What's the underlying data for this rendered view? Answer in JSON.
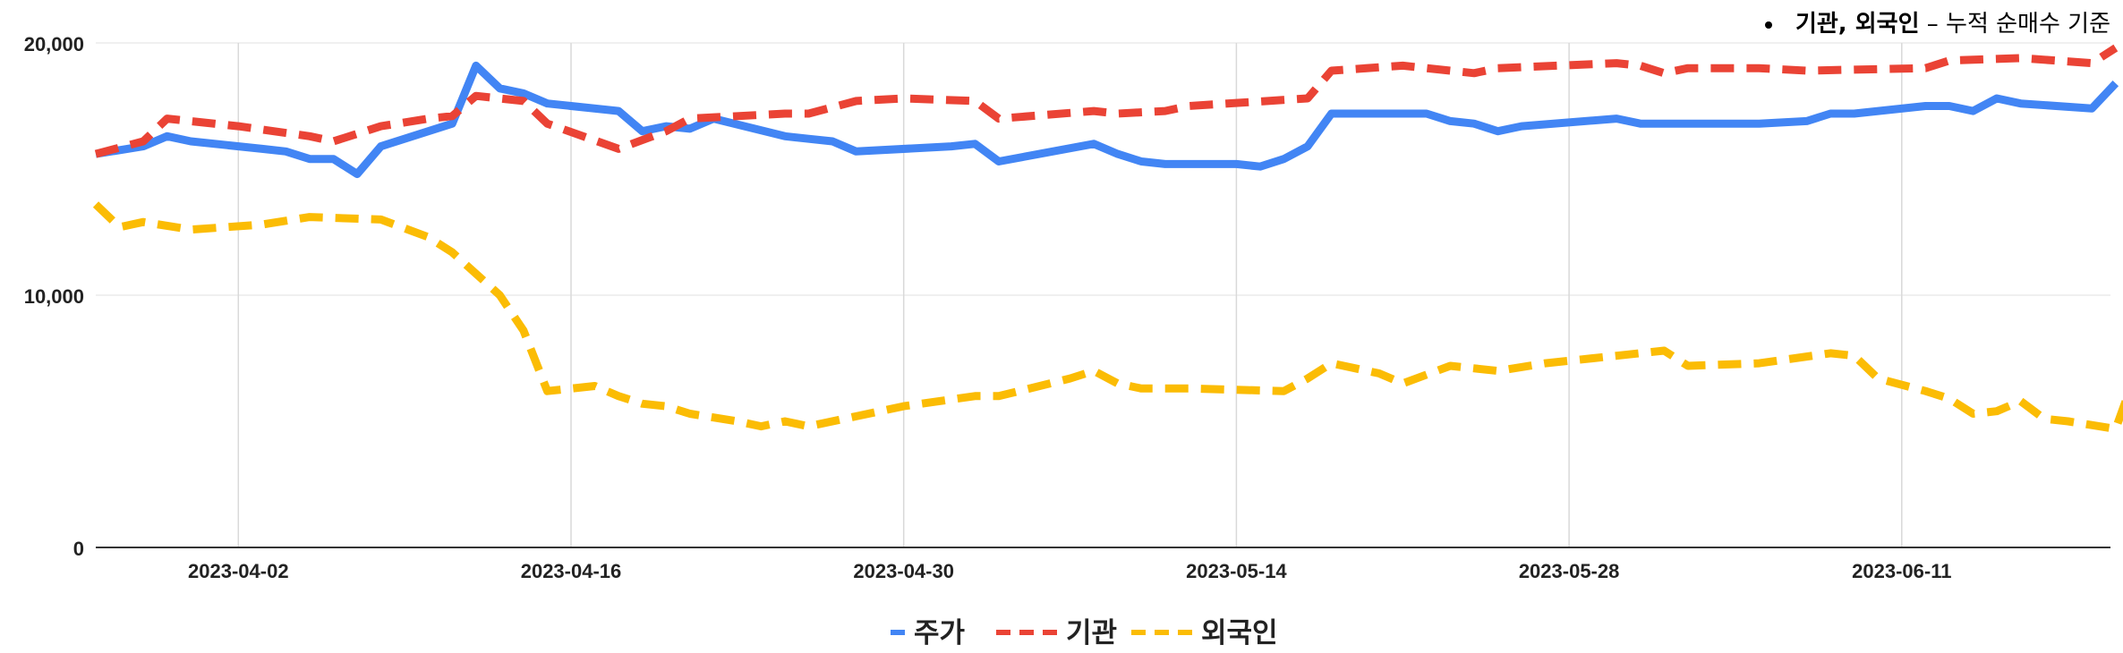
{
  "note": {
    "bold": "기관, 외국인",
    "rest": " – 누적 순매수 기준"
  },
  "colors": {
    "price": "#4285f4",
    "inst": "#ea4335",
    "foreign": "#fbbc04",
    "grid": "#d9d9d9",
    "axis": "#333333"
  },
  "chart_data": {
    "type": "line",
    "ylim": [
      0,
      20000
    ],
    "yticks": [
      "0",
      "10,000",
      "20,000"
    ],
    "x_tick_labels": [
      "2023-04-02",
      "2023-04-16",
      "2023-04-30",
      "2023-05-14",
      "2023-05-28",
      "2023-06-11"
    ],
    "legend_position": "bottom",
    "grid": true,
    "series": [
      {
        "name": "주가",
        "style": "solid",
        "color_key": "price",
        "points": [
          [
            "2023-03-27",
            15600
          ],
          [
            "2023-03-29",
            15900
          ],
          [
            "2023-03-30",
            16300
          ],
          [
            "2023-03-31",
            16100
          ],
          [
            "2023-04-03",
            15800
          ],
          [
            "2023-04-04",
            15700
          ],
          [
            "2023-04-05",
            15400
          ],
          [
            "2023-04-06",
            15400
          ],
          [
            "2023-04-07",
            14800
          ],
          [
            "2023-04-08",
            15900
          ],
          [
            "2023-04-11",
            16800
          ],
          [
            "2023-04-12",
            19100
          ],
          [
            "2023-04-13",
            18200
          ],
          [
            "2023-04-14",
            18000
          ],
          [
            "2023-04-15",
            17600
          ],
          [
            "2023-04-18",
            17300
          ],
          [
            "2023-04-19",
            16500
          ],
          [
            "2023-04-20",
            16700
          ],
          [
            "2023-04-21",
            16600
          ],
          [
            "2023-04-22",
            17000
          ],
          [
            "2023-04-25",
            16300
          ],
          [
            "2023-04-26",
            16200
          ],
          [
            "2023-04-27",
            16100
          ],
          [
            "2023-04-28",
            15700
          ],
          [
            "2023-05-02",
            15900
          ],
          [
            "2023-05-03",
            16000
          ],
          [
            "2023-05-04",
            15300
          ],
          [
            "2023-05-08",
            16000
          ],
          [
            "2023-05-09",
            15600
          ],
          [
            "2023-05-10",
            15300
          ],
          [
            "2023-05-11",
            15200
          ],
          [
            "2023-05-12",
            15200
          ],
          [
            "2023-05-14",
            15200
          ],
          [
            "2023-05-15",
            15100
          ],
          [
            "2023-05-16",
            15400
          ],
          [
            "2023-05-17",
            15900
          ],
          [
            "2023-05-18",
            17200
          ],
          [
            "2023-05-19",
            17200
          ],
          [
            "2023-05-22",
            17200
          ],
          [
            "2023-05-23",
            16900
          ],
          [
            "2023-05-24",
            16800
          ],
          [
            "2023-05-25",
            16500
          ],
          [
            "2023-05-26",
            16700
          ],
          [
            "2023-05-30",
            17000
          ],
          [
            "2023-05-31",
            16800
          ],
          [
            "2023-06-01",
            16800
          ],
          [
            "2023-06-05",
            16800
          ],
          [
            "2023-06-07",
            16900
          ],
          [
            "2023-06-08",
            17200
          ],
          [
            "2023-06-09",
            17200
          ],
          [
            "2023-06-12",
            17500
          ],
          [
            "2023-06-13",
            17500
          ],
          [
            "2023-06-14",
            17300
          ],
          [
            "2023-06-15",
            17800
          ],
          [
            "2023-06-16",
            17600
          ],
          [
            "2023-06-19",
            17400
          ],
          [
            "2023-06-20",
            18400
          ]
        ]
      },
      {
        "name": "기관",
        "style": "dashed",
        "color_key": "inst",
        "points": [
          [
            "2023-03-27",
            15600
          ],
          [
            "2023-03-29",
            16100
          ],
          [
            "2023-03-30",
            17000
          ],
          [
            "2023-04-02",
            16700
          ],
          [
            "2023-04-05",
            16300
          ],
          [
            "2023-04-06",
            16100
          ],
          [
            "2023-04-08",
            16700
          ],
          [
            "2023-04-10",
            17000
          ],
          [
            "2023-04-11",
            17100
          ],
          [
            "2023-04-12",
            17900
          ],
          [
            "2023-04-14",
            17700
          ],
          [
            "2023-04-15",
            16800
          ],
          [
            "2023-04-18",
            15800
          ],
          [
            "2023-04-20",
            16500
          ],
          [
            "2023-04-21",
            17000
          ],
          [
            "2023-04-25",
            17200
          ],
          [
            "2023-04-26",
            17200
          ],
          [
            "2023-04-28",
            17700
          ],
          [
            "2023-04-30",
            17800
          ],
          [
            "2023-05-03",
            17700
          ],
          [
            "2023-05-04",
            17000
          ],
          [
            "2023-05-08",
            17300
          ],
          [
            "2023-05-09",
            17200
          ],
          [
            "2023-05-11",
            17300
          ],
          [
            "2023-05-12",
            17500
          ],
          [
            "2023-05-17",
            17800
          ],
          [
            "2023-05-18",
            18900
          ],
          [
            "2023-05-21",
            19100
          ],
          [
            "2023-05-24",
            18800
          ],
          [
            "2023-05-25",
            19000
          ],
          [
            "2023-05-30",
            19200
          ],
          [
            "2023-05-31",
            19100
          ],
          [
            "2023-06-01",
            18800
          ],
          [
            "2023-06-02",
            19000
          ],
          [
            "2023-06-05",
            19000
          ],
          [
            "2023-06-07",
            18900
          ],
          [
            "2023-06-12",
            19000
          ],
          [
            "2023-06-13",
            19300
          ],
          [
            "2023-06-16",
            19400
          ],
          [
            "2023-06-19",
            19200
          ],
          [
            "2023-06-20",
            19800
          ]
        ]
      },
      {
        "name": "외국인",
        "style": "dashed",
        "color_key": "foreign",
        "points": [
          [
            "2023-03-27",
            13600
          ],
          [
            "2023-03-28",
            12700
          ],
          [
            "2023-03-29",
            12900
          ],
          [
            "2023-03-31",
            12600
          ],
          [
            "2023-04-03",
            12800
          ],
          [
            "2023-04-05",
            13100
          ],
          [
            "2023-04-08",
            13000
          ],
          [
            "2023-04-10",
            12300
          ],
          [
            "2023-04-11",
            11700
          ],
          [
            "2023-04-13",
            10000
          ],
          [
            "2023-04-14",
            8600
          ],
          [
            "2023-04-15",
            6200
          ],
          [
            "2023-04-17",
            6400
          ],
          [
            "2023-04-18",
            6000
          ],
          [
            "2023-04-19",
            5700
          ],
          [
            "2023-04-20",
            5600
          ],
          [
            "2023-04-21",
            5300
          ],
          [
            "2023-04-23",
            5000
          ],
          [
            "2023-04-24",
            4800
          ],
          [
            "2023-04-25",
            5000
          ],
          [
            "2023-04-26",
            4800
          ],
          [
            "2023-04-28",
            5200
          ],
          [
            "2023-04-30",
            5600
          ],
          [
            "2023-05-03",
            6000
          ],
          [
            "2023-05-04",
            6000
          ],
          [
            "2023-05-07",
            6700
          ],
          [
            "2023-05-08",
            7000
          ],
          [
            "2023-05-09",
            6500
          ],
          [
            "2023-05-10",
            6300
          ],
          [
            "2023-05-12",
            6300
          ],
          [
            "2023-05-16",
            6200
          ],
          [
            "2023-05-17",
            6700
          ],
          [
            "2023-05-18",
            7300
          ],
          [
            "2023-05-20",
            6900
          ],
          [
            "2023-05-21",
            6500
          ],
          [
            "2023-05-23",
            7200
          ],
          [
            "2023-05-25",
            7000
          ],
          [
            "2023-05-27",
            7300
          ],
          [
            "2023-05-30",
            7600
          ],
          [
            "2023-06-01",
            7800
          ],
          [
            "2023-06-02",
            7200
          ],
          [
            "2023-06-05",
            7300
          ],
          [
            "2023-06-08",
            7700
          ],
          [
            "2023-06-09",
            7600
          ],
          [
            "2023-06-10",
            6700
          ],
          [
            "2023-06-12",
            6200
          ],
          [
            "2023-06-13",
            5900
          ],
          [
            "2023-06-14",
            5300
          ],
          [
            "2023-06-15",
            5400
          ],
          [
            "2023-06-16",
            5800
          ],
          [
            "2023-06-17",
            5100
          ],
          [
            "2023-06-18",
            5000
          ],
          [
            "2023-06-20",
            4700
          ],
          [
            "2023-06-21",
            7300
          ]
        ]
      }
    ]
  }
}
